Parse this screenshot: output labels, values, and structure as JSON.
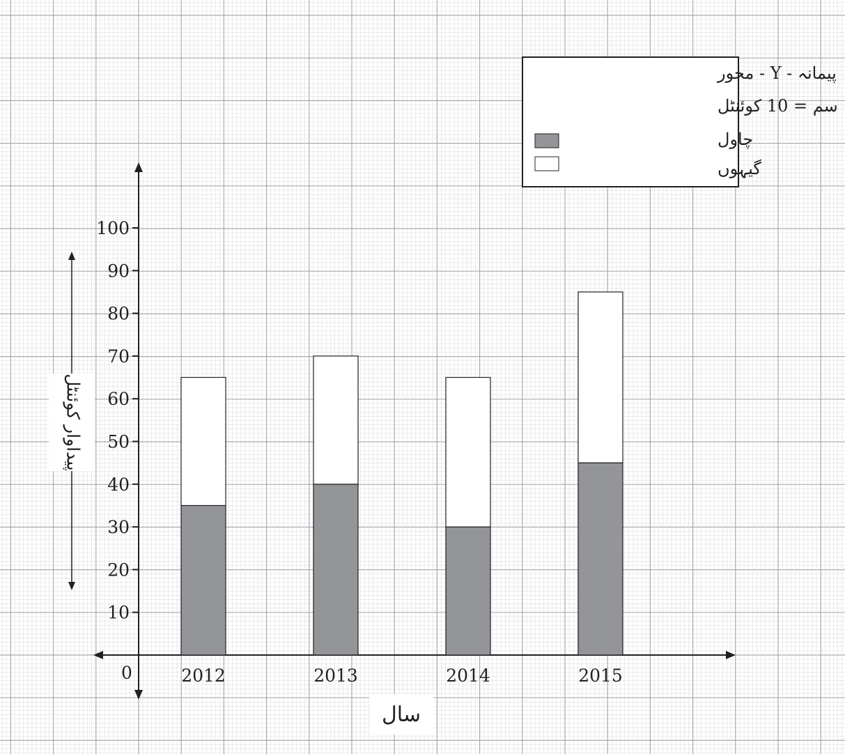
{
  "chart_data": {
    "type": "bar",
    "stacked": true,
    "categories": [
      "2012",
      "2013",
      "2014",
      "2015"
    ],
    "series": [
      {
        "name": "چاول",
        "values": [
          35,
          40,
          30,
          45
        ],
        "color": "#939598"
      },
      {
        "name": "گیہوں",
        "values": [
          30,
          30,
          35,
          40
        ],
        "color": "#ffffff"
      }
    ],
    "yticks": [
      10,
      20,
      30,
      40,
      50,
      60,
      70,
      80,
      90,
      100
    ],
    "origin_label": "0",
    "ylim": [
      0,
      100
    ],
    "xlabel": "سال",
    "ylabel": "پیداوار کوئنٹل",
    "grid": true,
    "legend": {
      "position": "top-right",
      "scale_title": "پیمانہ - Y - محور",
      "scale_value": "1 سم = 10 کوئنٹل"
    }
  },
  "colors": {
    "grid_fine": "#dcdddd",
    "grid_major": "#a7a9ac",
    "axis": "#231f20"
  }
}
